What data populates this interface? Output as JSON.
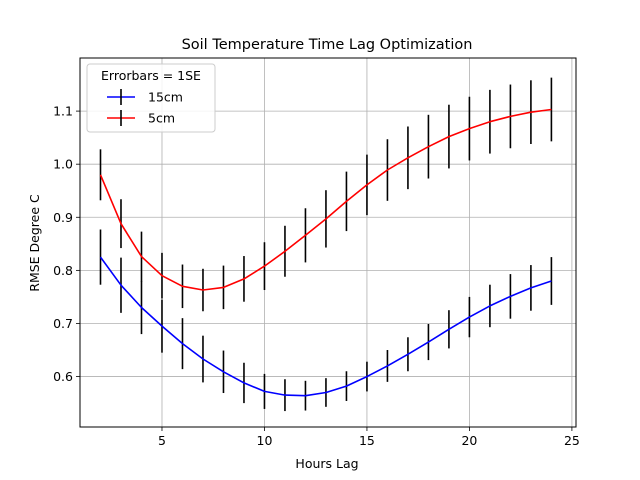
{
  "chart_data": {
    "type": "line",
    "title": "Soil Temperature Time Lag Optimization",
    "xlabel": "Hours Lag",
    "ylabel": "RMSE Degree C",
    "xlim": [
      1.0,
      25.2
    ],
    "ylim": [
      0.505,
      1.2
    ],
    "xticks": [
      5,
      10,
      15,
      20,
      25
    ],
    "yticks": [
      0.6,
      0.7,
      0.8,
      0.9,
      1.0,
      1.1
    ],
    "ytick_labels": [
      "0.6",
      "0.7",
      "0.8",
      "0.9",
      "1.0",
      "1.1"
    ],
    "grid": true,
    "legend": {
      "title": "Errorbars = 1SE",
      "placement": "top-left"
    },
    "x": [
      2,
      3,
      4,
      5,
      6,
      7,
      8,
      9,
      10,
      11,
      12,
      13,
      14,
      15,
      16,
      17,
      18,
      19,
      20,
      21,
      22,
      23,
      24
    ],
    "series": [
      {
        "name": "15cm",
        "color": "#0000ff",
        "values": [
          0.825,
          0.772,
          0.73,
          0.695,
          0.662,
          0.633,
          0.609,
          0.588,
          0.572,
          0.565,
          0.564,
          0.57,
          0.582,
          0.6,
          0.62,
          0.642,
          0.665,
          0.689,
          0.712,
          0.733,
          0.751,
          0.767,
          0.78
        ],
        "errors": [
          0.052,
          0.052,
          0.05,
          0.05,
          0.048,
          0.044,
          0.04,
          0.038,
          0.033,
          0.03,
          0.028,
          0.027,
          0.028,
          0.028,
          0.03,
          0.032,
          0.034,
          0.036,
          0.038,
          0.04,
          0.042,
          0.043,
          0.045
        ]
      },
      {
        "name": "5cm",
        "color": "#ff0000",
        "values": [
          0.98,
          0.888,
          0.826,
          0.79,
          0.77,
          0.763,
          0.768,
          0.784,
          0.808,
          0.836,
          0.866,
          0.897,
          0.93,
          0.961,
          0.989,
          1.012,
          1.033,
          1.052,
          1.067,
          1.08,
          1.09,
          1.098,
          1.103
        ],
        "errors": [
          0.048,
          0.046,
          0.047,
          0.043,
          0.041,
          0.04,
          0.041,
          0.043,
          0.045,
          0.048,
          0.051,
          0.054,
          0.056,
          0.057,
          0.058,
          0.059,
          0.06,
          0.06,
          0.06,
          0.06,
          0.06,
          0.06,
          0.06
        ]
      }
    ],
    "errorbar_color": "#000000"
  }
}
